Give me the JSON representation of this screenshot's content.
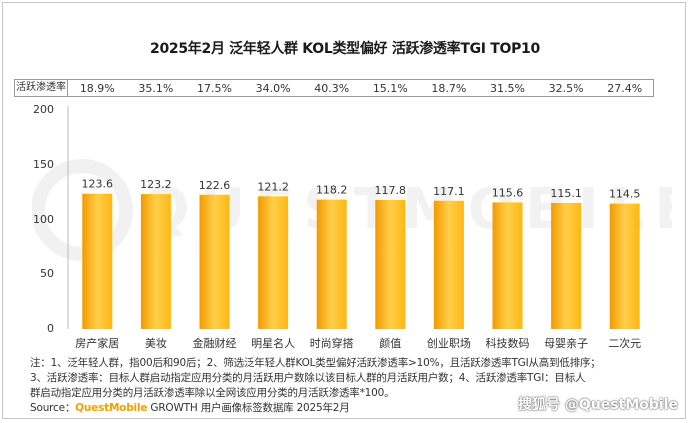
{
  "chart_data": {
    "type": "bar",
    "title": "2025年2月 泛年轻人群 KOL类型偏好 活跃渗透率TGI TOP10",
    "categories": [
      "房产家居",
      "美妆",
      "金融财经",
      "明星名人",
      "时尚穿搭",
      "颜值",
      "创业职场",
      "科技数码",
      "母婴亲子",
      "二次元"
    ],
    "values": [
      123.6,
      123.2,
      122.6,
      121.2,
      118.2,
      117.8,
      117.1,
      115.6,
      115.1,
      114.5
    ],
    "penetration_label": "活跃渗透率",
    "penetration_rates": [
      "18.9%",
      "35.1%",
      "17.5%",
      "34.0%",
      "40.3%",
      "15.1%",
      "18.7%",
      "31.5%",
      "32.5%",
      "27.4%"
    ],
    "ylim": [
      0,
      200
    ],
    "yticks": [
      "0",
      "50",
      "100",
      "150",
      "200"
    ],
    "bar_color": "#fdb813",
    "bar_color_light": "#ffcf4a",
    "bar_color_dark": "#f29a00"
  },
  "notes": {
    "line1": "注：1、泛年轻人群，指00后和90后；2、筛选泛年轻人群KOL类型偏好活跃渗透率>10%，且活跃渗透率TGI从高到低排序；",
    "line2": "3、活跃渗透率：目标人群启动指定应用分类的月活跃用户数除以该目标人群的月活跃用户数；4、活跃渗透率TGI：目标人",
    "line3": "群启动指定应用分类的月活跃渗透率除以全网该应用分类的月活跃渗透率*100。"
  },
  "source": {
    "prefix": "Source：",
    "brand": "QuestMobile",
    "rest": " GROWTH 用户画像标签数据库 2025年2月"
  },
  "watermark": "QUESTMOBILE",
  "signature": "搜狐号 @QuestMobile"
}
